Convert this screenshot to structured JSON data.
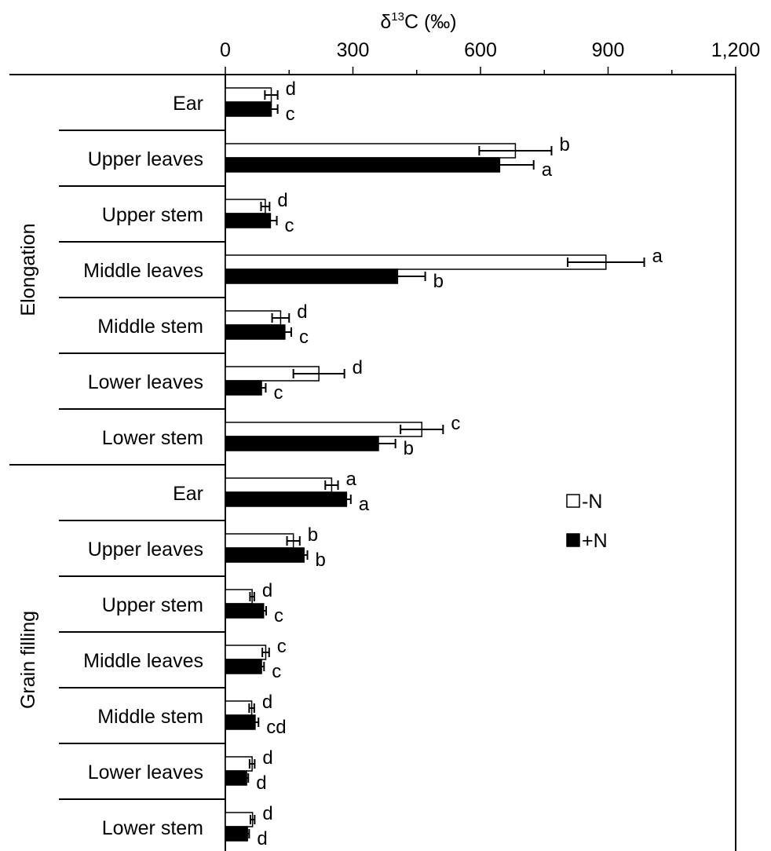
{
  "chart_data": {
    "type": "bar",
    "orientation": "horizontal",
    "xlabel": "δ13C (‰)",
    "xlim": [
      0,
      1200
    ],
    "x_ticks": [
      0,
      300,
      600,
      900,
      1200
    ],
    "x_tick_labels": [
      "0",
      "300",
      "600",
      "900",
      "1,200"
    ],
    "x_axis_position": "top",
    "grid": false,
    "legend_position": "center-right",
    "groups": [
      {
        "name": "Elongation",
        "categories": [
          "Ear",
          "Upper leaves",
          "Upper stem",
          "Middle leaves",
          "Middle stem",
          "Lower leaves",
          "Lower stem"
        ]
      },
      {
        "name": "Grain filling",
        "categories": [
          "Ear",
          "Upper leaves",
          "Upper stem",
          "Middle leaves",
          "Middle stem",
          "Lower leaves",
          "Lower stem"
        ]
      }
    ],
    "series": [
      {
        "name": "-N",
        "color": "#ffffff",
        "values": [
          108,
          682,
          94,
          895,
          130,
          220,
          462,
          250,
          160,
          63,
          95,
          62,
          63,
          64
        ],
        "errors": [
          15,
          85,
          10,
          90,
          20,
          60,
          50,
          15,
          15,
          5,
          8,
          6,
          6,
          5
        ],
        "letters": [
          "d",
          "b",
          "d",
          "a",
          "d",
          "d",
          "c",
          "a",
          "b",
          "d",
          "c",
          "d",
          "d",
          "d"
        ]
      },
      {
        "name": "+N",
        "color": "#000000",
        "values": [
          108,
          645,
          106,
          405,
          140,
          85,
          360,
          285,
          185,
          90,
          85,
          70,
          50,
          52
        ],
        "errors": [
          15,
          80,
          15,
          65,
          15,
          10,
          40,
          10,
          8,
          6,
          6,
          8,
          4,
          4
        ],
        "letters": [
          "c",
          "a",
          "c",
          "b",
          "c",
          "c",
          "b",
          "a",
          "b",
          "c",
          "c",
          "cd",
          "d",
          "d"
        ]
      }
    ]
  }
}
